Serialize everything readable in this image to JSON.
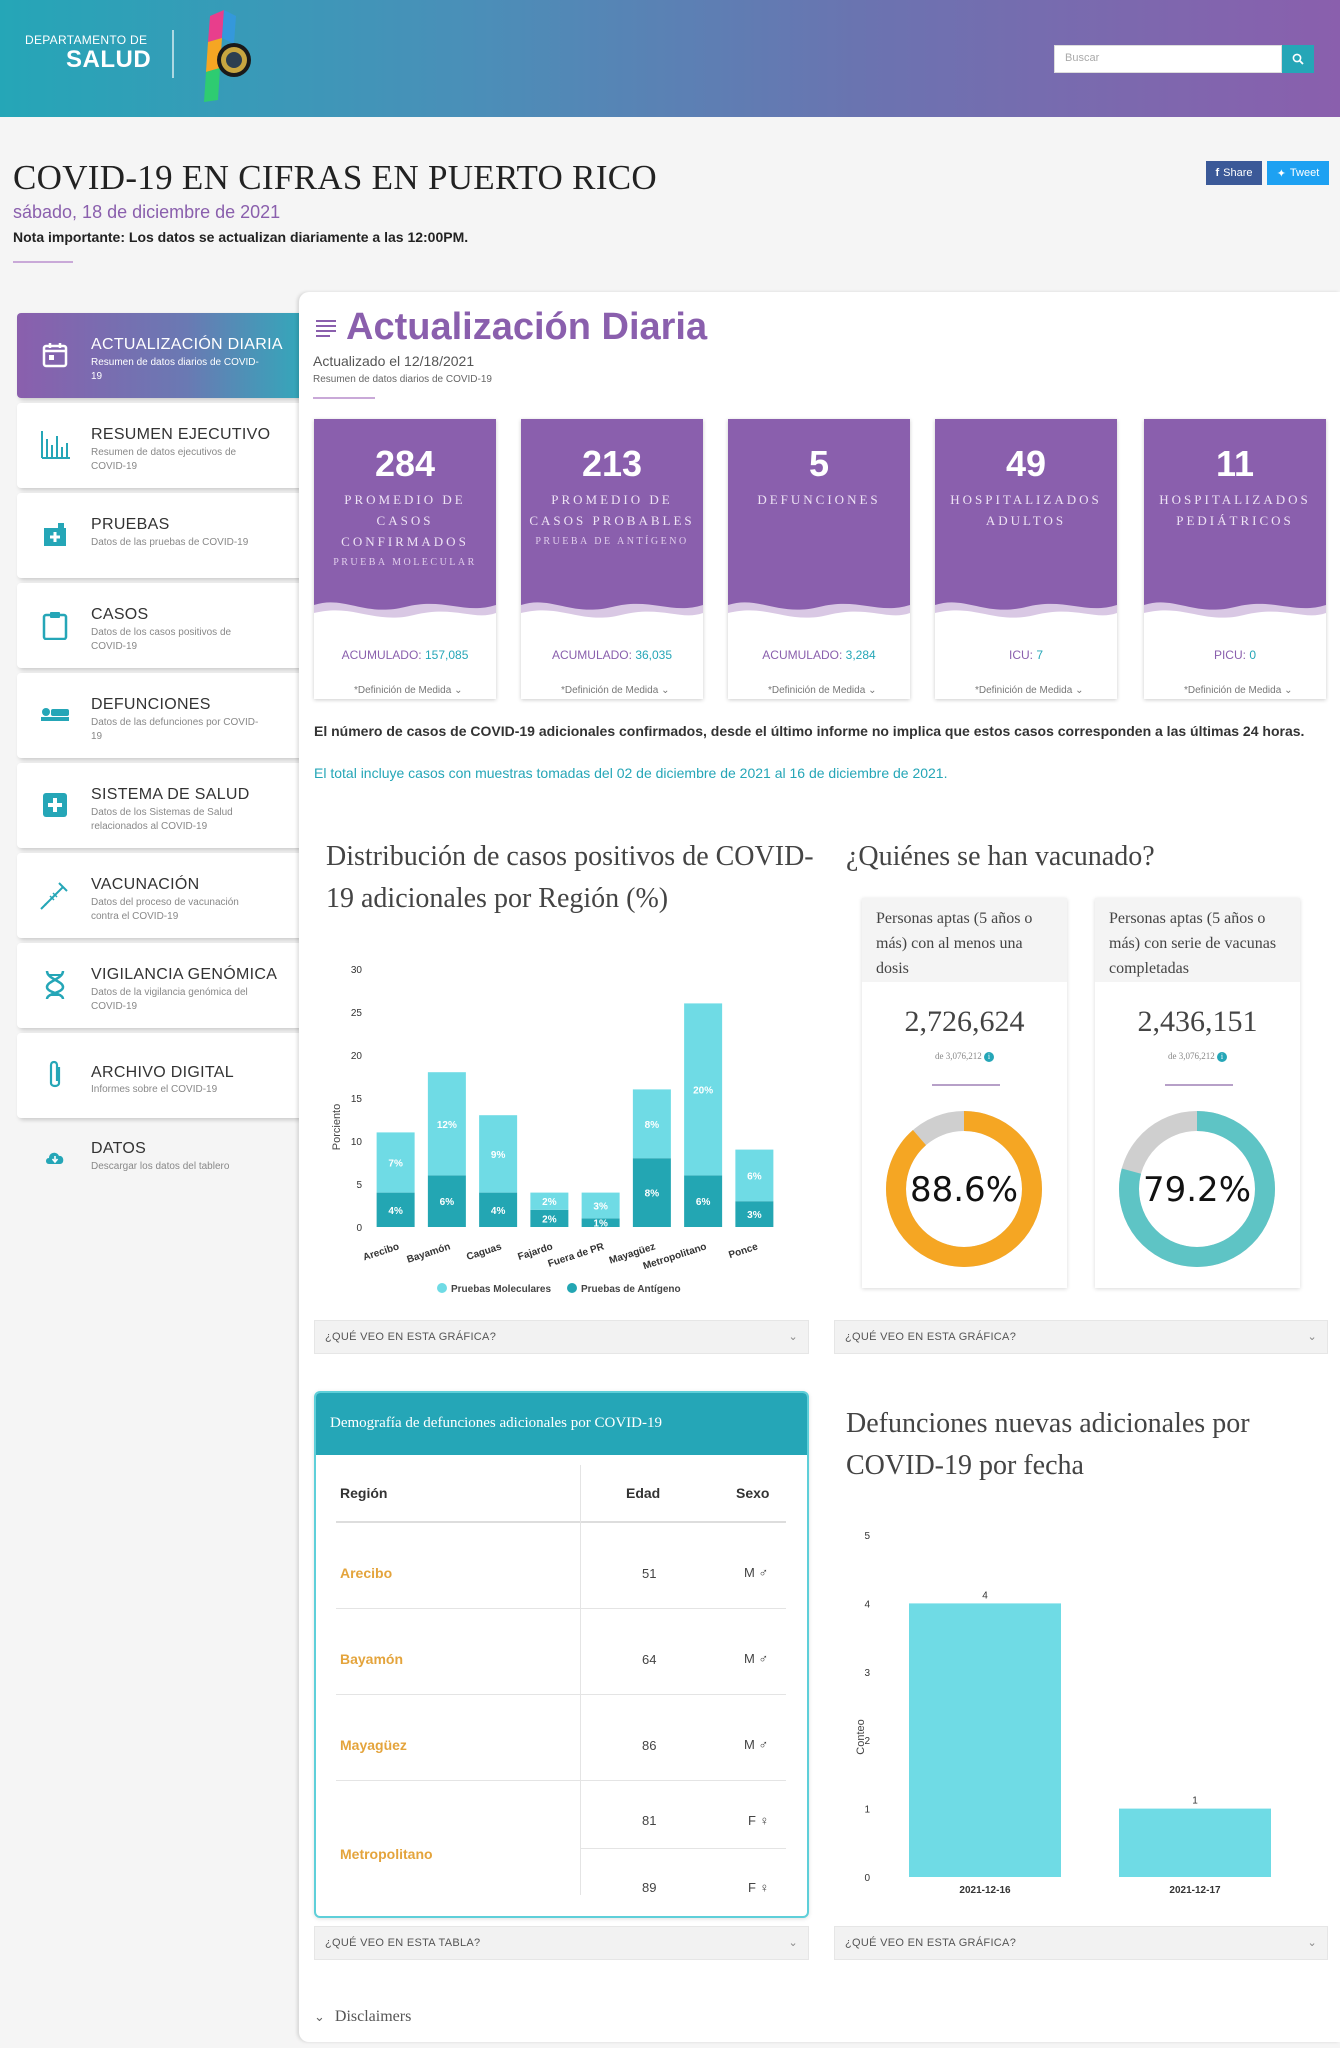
{
  "header": {
    "logo_small": "DEPARTAMENTO DE",
    "logo_big": "SALUD",
    "search_placeholder": "Buscar",
    "icons": {
      "search": "search-icon",
      "seal": "seal-icon"
    },
    "colors": {
      "teal": "#25a6b7",
      "purple": "#8a5fad"
    }
  },
  "page": {
    "title": "COVID-19 EN CIFRAS EN PUERTO RICO",
    "date": "sábado, 18 de diciembre de 2021",
    "note": "Nota importante: Los datos se actualizan diariamente a las 12:00PM.",
    "share": "Share",
    "tweet": "Tweet"
  },
  "sidebar": {
    "items": [
      {
        "title": "ACTUALIZACIÓN DIARIA",
        "sub": "Resumen de datos diarios de COVID-19",
        "icon": "calendar-icon"
      },
      {
        "title": "RESUMEN EJECUTIVO",
        "sub": "Resumen de datos ejecutivos de COVID-19",
        "icon": "bar-chart-icon"
      },
      {
        "title": "PRUEBAS",
        "sub": "Datos de las pruebas de COVID-19",
        "icon": "test-kit-icon"
      },
      {
        "title": "CASOS",
        "sub": "Datos de los casos positivos de COVID-19",
        "icon": "clipboard-icon"
      },
      {
        "title": "DEFUNCIONES",
        "sub": "Datos de las defunciones por COVID-19",
        "icon": "bed-icon"
      },
      {
        "title": "SISTEMA DE SALUD",
        "sub": "Datos de los Sistemas de Salud relacionados al COVID-19",
        "icon": "health-cross-icon"
      },
      {
        "title": "VACUNACIÓN",
        "sub": "Datos del proceso de vacunación contra el COVID-19",
        "icon": "syringe-icon"
      },
      {
        "title": "VIGILANCIA GENÓMICA",
        "sub": "Datos de la vigilancia genómica del COVID-19",
        "icon": "dna-icon"
      },
      {
        "title": "ARCHIVO DIGITAL",
        "sub": "Informes sobre el COVID-19",
        "icon": "paperclip-icon"
      },
      {
        "title": "DATOS",
        "sub": "Descargar los datos del tablero",
        "icon": "cloud-download-icon"
      }
    ]
  },
  "daily": {
    "title": "Actualización Diaria",
    "updated": "Actualizado el 12/18/2021",
    "subtitle": "Resumen de datos diarios de COVID-19",
    "definition": "*Definición de Medida",
    "cards": [
      {
        "value": "284",
        "label": "PROMEDIO DE CASOS CONFIRMADOS",
        "sub": "PRUEBA MOLECULAR",
        "acc_label": "ACUMULADO:",
        "acc_value": "157,085"
      },
      {
        "value": "213",
        "label": "PROMEDIO DE CASOS PROBABLES",
        "sub": "PRUEBA DE ANTÍGENO",
        "acc_label": "ACUMULADO:",
        "acc_value": "36,035"
      },
      {
        "value": "5",
        "label": "DEFUNCIONES",
        "sub": "",
        "acc_label": "ACUMULADO:",
        "acc_value": "3,284"
      },
      {
        "value": "49",
        "label": "HOSPITALIZADOS ADULTOS",
        "sub": "",
        "acc_label": "ICU:",
        "acc_value": "7"
      },
      {
        "value": "11",
        "label": "HOSPITALIZADOS PEDIÁTRICOS",
        "sub": "",
        "acc_label": "PICU:",
        "acc_value": "0"
      }
    ],
    "note_bold": "El número de casos de COVID-19 adicionales confirmados, desde el último informe no implica que estos casos corresponden a las últimas 24 horas.",
    "note_link": "El total incluye casos con muestras tomadas del 02 de diciembre de 2021 al 16 de diciembre de 2021."
  },
  "region_chart": {
    "title": "Distribución de casos positivos de COVID-19 adicionales por Región (%)",
    "faq": "¿QUÉ VEO EN ESTA GRÁFICA?"
  },
  "vaccine": {
    "title": "¿Quiénes se han vacunado?",
    "faq": "¿QUÉ VEO EN ESTA GRÁFICA?",
    "boxes": [
      {
        "head": "Personas aptas (5 años o más) con al menos una dosis",
        "value": "2,726,624",
        "of": "de 3,076,212",
        "pct": "88.6%",
        "fraction": 0.886,
        "color": "#f5a623"
      },
      {
        "head": "Personas aptas (5 años o más) con serie de vacunas completadas",
        "value": "2,436,151",
        "of": "de 3,076,212",
        "pct": "79.2%",
        "fraction": 0.792,
        "color": "#5ec4c5"
      }
    ]
  },
  "demography": {
    "title": "Demografía de defunciones adicionales por COVID-19",
    "headers": {
      "region": "Región",
      "age": "Edad",
      "sex": "Sexo"
    },
    "rows": [
      {
        "region": "Arecibo",
        "age": "51",
        "sex": "M ♂"
      },
      {
        "region": "Bayamón",
        "age": "64",
        "sex": "M ♂"
      },
      {
        "region": "Mayagüez",
        "age": "86",
        "sex": "M ♂"
      },
      {
        "region": "Metropolitano",
        "age": "81",
        "sex": "F ♀"
      },
      {
        "region": "",
        "age": "89",
        "sex": "F ♀"
      }
    ],
    "faq": "¿QUÉ VEO EN ESTA TABLA?"
  },
  "deaths_chart": {
    "title": "Defunciones nuevas adicionales por COVID-19 por fecha",
    "faq": "¿QUÉ VEO EN ESTA GRÁFICA?"
  },
  "disclaimers": "Disclaimers",
  "chart_data": [
    {
      "type": "bar",
      "stacked": true,
      "title": "Distribución de casos positivos de COVID-19 adicionales por Región (%)",
      "ylabel": "Porciento",
      "xlabel": "",
      "ylim": [
        0,
        30
      ],
      "yticks": [
        0,
        5,
        10,
        15,
        20,
        25,
        30
      ],
      "categories": [
        "Arecibo",
        "Bayamón",
        "Caguas",
        "Fajardo",
        "Fuera de PR",
        "Mayagüez",
        "Metropolitano",
        "Ponce"
      ],
      "series": [
        {
          "name": "Pruebas de Antígeno",
          "color": "#23a6b3",
          "values": [
            4,
            6,
            4,
            2,
            1,
            8,
            6,
            3
          ],
          "labels": [
            "4%",
            "6%",
            "4%",
            "2%",
            "1%",
            "8%",
            "6%",
            "3%"
          ]
        },
        {
          "name": "Pruebas Moleculares",
          "color": "#6fdbe5",
          "values": [
            7,
            12,
            9,
            2,
            3,
            8,
            20,
            6
          ],
          "labels": [
            "7%",
            "12%",
            "9%",
            "2%",
            "3%",
            "8%",
            "20%",
            "6%"
          ]
        }
      ],
      "legend": [
        "Pruebas Moleculares",
        "Pruebas de Antígeno"
      ],
      "legend_position": "bottom"
    },
    {
      "type": "bar",
      "title": "Defunciones nuevas adicionales por COVID-19 por fecha",
      "ylabel": "Conteo",
      "xlabel": "",
      "ylim": [
        0,
        5
      ],
      "yticks": [
        0,
        1,
        2,
        3,
        4,
        5
      ],
      "categories": [
        "2021-12-16",
        "2021-12-17"
      ],
      "values": [
        4,
        1
      ],
      "color": "#6fdbe5"
    }
  ]
}
